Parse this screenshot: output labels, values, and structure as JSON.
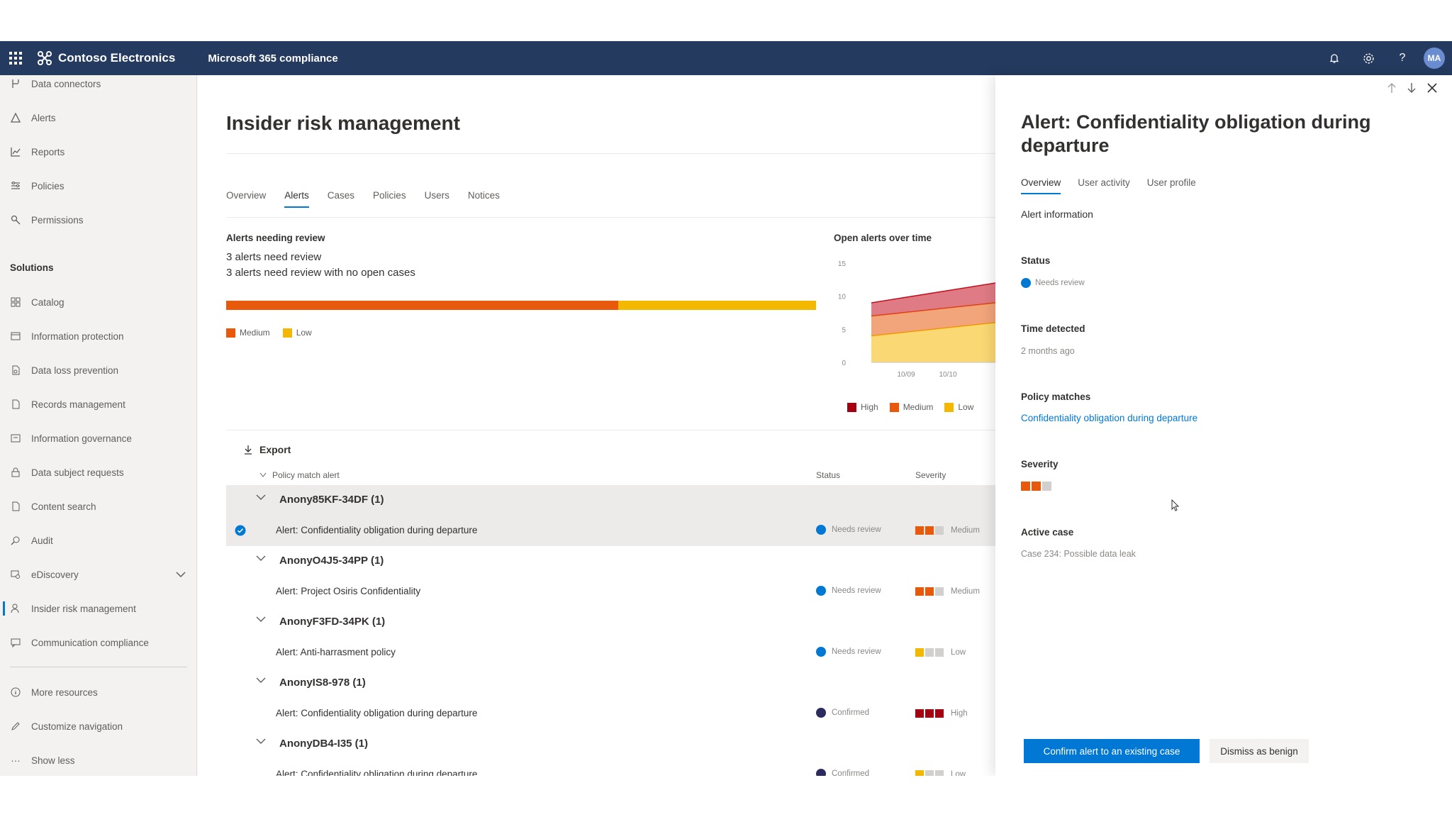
{
  "topbar": {
    "org_name": "Contoso Electronics",
    "app_title": "Microsoft 365 compliance",
    "avatar_initials": "MA",
    "icons": [
      "waffle-icon",
      "bell-icon",
      "gear-icon",
      "help-icon"
    ]
  },
  "nav": {
    "top_items": [
      {
        "label": "Data connectors",
        "icon": "connector-icon"
      },
      {
        "label": "Alerts",
        "icon": "alert-icon"
      },
      {
        "label": "Reports",
        "icon": "chart-icon"
      },
      {
        "label": "Policies",
        "icon": "policy-icon"
      },
      {
        "label": "Permissions",
        "icon": "key-icon"
      }
    ],
    "section_title": "Solutions",
    "solutions": [
      {
        "label": "Catalog",
        "icon": "catalog-icon"
      },
      {
        "label": "Information protection",
        "icon": "shield-icon"
      },
      {
        "label": "Data loss prevention",
        "icon": "dlp-icon"
      },
      {
        "label": "Records management",
        "icon": "records-icon"
      },
      {
        "label": "Information governance",
        "icon": "governance-icon"
      },
      {
        "label": "Data subject requests",
        "icon": "lock-icon"
      },
      {
        "label": "Content search",
        "icon": "search-icon"
      },
      {
        "label": "Audit",
        "icon": "audit-icon"
      },
      {
        "label": "eDiscovery",
        "icon": "ediscovery-icon"
      },
      {
        "label": "Insider risk management",
        "icon": "person-icon"
      },
      {
        "label": "Communication compliance",
        "icon": "chat-icon"
      }
    ],
    "bottom_items": [
      {
        "label": "More resources",
        "icon": "info-icon"
      },
      {
        "label": "Customize navigation",
        "icon": "pencil-icon"
      },
      {
        "label": "Show less",
        "icon": "more-icon"
      }
    ],
    "active": "Insider risk management"
  },
  "main": {
    "title": "Insider risk management",
    "tabs": [
      "Overview",
      "Alerts",
      "Cases",
      "Policies",
      "Users",
      "Notices"
    ],
    "active_tab": "Alerts",
    "alerts_needing_review": {
      "title": "Alerts needing review",
      "line1": "3 alerts need review",
      "line2": "3 alerts need review with no open cases",
      "medium_fraction": 0.665,
      "low_fraction": 0.335,
      "legend": [
        "Medium",
        "Low"
      ]
    },
    "open_alerts_title": "Open alerts over time",
    "export_label": "Export",
    "columns": {
      "name": "Policy match alert",
      "status": "Status",
      "severity": "Severity"
    },
    "groups": [
      {
        "user": "Anony85KF-34DF (1)",
        "alert": "Alert: Confidentiality obligation during departure",
        "status": "Needs review",
        "status_color": "#0078d4",
        "severity": "Medium",
        "severity_level": 2,
        "selected": true
      },
      {
        "user": "AnonyO4J5-34PP (1)",
        "alert": "Alert: Project Osiris Confidentiality",
        "status": "Needs review",
        "status_color": "#0078d4",
        "severity": "Medium",
        "severity_level": 2,
        "selected": false
      },
      {
        "user": "AnonyF3FD-34PK (1)",
        "alert": "Alert: Anti-harrasment policy",
        "status": "Needs review",
        "status_color": "#0078d4",
        "severity": "Low",
        "severity_level": 1,
        "selected": false
      },
      {
        "user": "AnonyIS8-978 (1)",
        "alert": "Alert: Confidentiality obligation during departure",
        "status": "Confirmed",
        "status_color": "#2b2b5e",
        "severity": "High",
        "severity_level": 3,
        "selected": false
      },
      {
        "user": "AnonyDB4-I35 (1)",
        "alert": "Alert: Confidentiality obligation during departure",
        "status": "Confirmed",
        "status_color": "#2b2b5e",
        "severity": "Low",
        "severity_level": 1,
        "selected": false
      }
    ]
  },
  "chart_data": {
    "type": "area",
    "title": "Open alerts over time",
    "x": [
      "10/09",
      "10/10"
    ],
    "y_ticks": [
      0,
      5,
      10,
      15
    ],
    "ylim": [
      0,
      15
    ],
    "series": [
      {
        "name": "Low",
        "color": "#f5b800",
        "values": [
          4,
          6
        ]
      },
      {
        "name": "Medium",
        "color": "#e8590c",
        "values": [
          3,
          3
        ]
      },
      {
        "name": "High",
        "color": "#c50f1f",
        "values": [
          2,
          3
        ]
      }
    ],
    "legend": [
      "High",
      "Medium",
      "Low"
    ],
    "legend_position": "bottom"
  },
  "panel": {
    "title": "Alert: Confidentiality obligation during departure",
    "tabs": [
      "Overview",
      "User activity",
      "User profile"
    ],
    "active_tab": "Overview",
    "section": "Alert information",
    "status_label": "Status",
    "status_value": "Needs review",
    "time_label": "Time detected",
    "time_value": "2 months ago",
    "policy_label": "Policy matches",
    "policy_value": "Confidentiality obligation during departure",
    "severity_label": "Severity",
    "severity_level": 2,
    "case_label": "Active case",
    "case_value": "Case 234: Possible data leak",
    "confirm_button": "Confirm alert to an existing case",
    "dismiss_button": "Dismiss as benign"
  },
  "colors": {
    "topbar": "#243a5e",
    "accent": "#0078d4",
    "medium": "#e8590c",
    "low": "#f5b800",
    "high": "#a4000f"
  }
}
